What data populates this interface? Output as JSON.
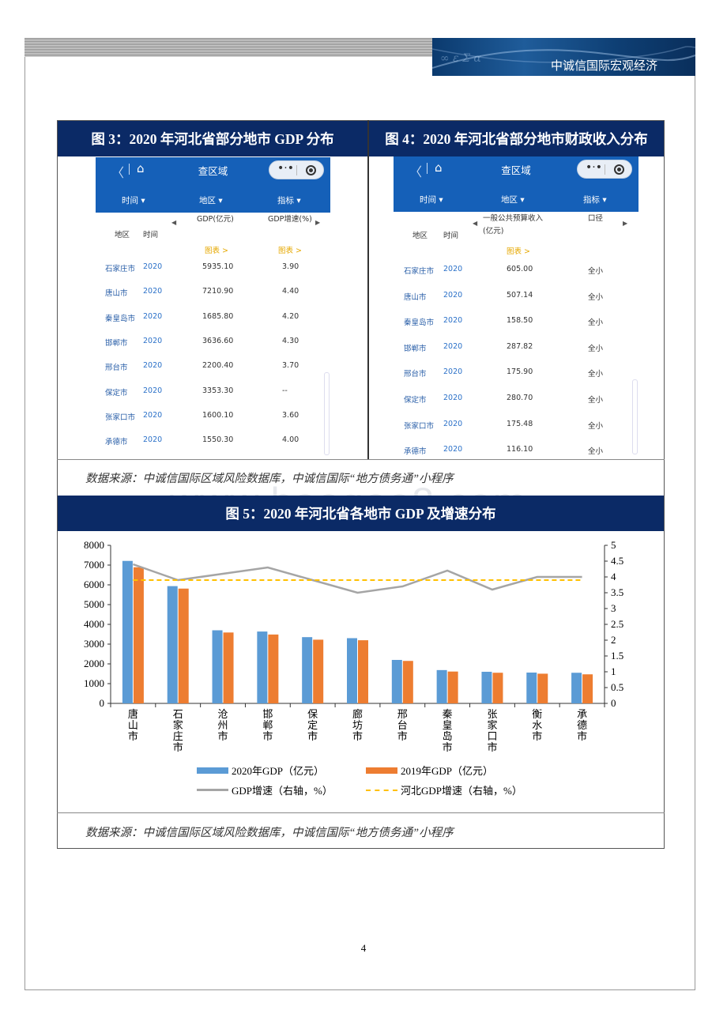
{
  "header": {
    "brand": "中诚信国际宏观经济"
  },
  "fig3": {
    "title": "图 3：2020 年河北省部分地市 GDP 分布",
    "nav_back": "〈",
    "nav_home": "⌂",
    "nav_title": "查区域",
    "capsule_dots": "•·•",
    "filters": [
      "时间 ▾",
      "地区 ▾",
      "指标 ▾"
    ],
    "col_region": "地区",
    "col_time": "时间",
    "col_gdp": "GDP(亿元)",
    "col_growth": "GDP增速(%)",
    "chart_link_1": "图表 >",
    "chart_link_2": "图表 >",
    "arrow_left": "◀",
    "arrow_right": "▶",
    "rows": [
      {
        "city": "石家庄市",
        "year": "2020",
        "gdp": "5935.10",
        "growth": "3.90"
      },
      {
        "city": "唐山市",
        "year": "2020",
        "gdp": "7210.90",
        "growth": "4.40"
      },
      {
        "city": "秦皇岛市",
        "year": "2020",
        "gdp": "1685.80",
        "growth": "4.20"
      },
      {
        "city": "邯郸市",
        "year": "2020",
        "gdp": "3636.60",
        "growth": "4.30"
      },
      {
        "city": "邢台市",
        "year": "2020",
        "gdp": "2200.40",
        "growth": "3.70"
      },
      {
        "city": "保定市",
        "year": "2020",
        "gdp": "3353.30",
        "growth": "--"
      },
      {
        "city": "张家口市",
        "year": "2020",
        "gdp": "1600.10",
        "growth": "3.60"
      },
      {
        "city": "承德市",
        "year": "2020",
        "gdp": "1550.30",
        "growth": "4.00"
      }
    ]
  },
  "fig4": {
    "title": "图 4：2020 年河北省部分地市财政收入分布",
    "nav_back": "〈",
    "nav_home": "⌂",
    "nav_title": "查区域",
    "capsule_dots": "•·•",
    "filters": [
      "时间 ▾",
      "地区 ▾",
      "指标 ▾"
    ],
    "col_region": "地区",
    "col_time": "时间",
    "col_revenue_1": "一般公共预算收入",
    "col_revenue_2": "(亿元)",
    "col_scope": "口径",
    "chart_link": "图表 >",
    "arrow_left": "◀",
    "arrow_right": "▶",
    "rows": [
      {
        "city": "石家庄市",
        "year": "2020",
        "revenue": "605.00",
        "scope": "全小"
      },
      {
        "city": "唐山市",
        "year": "2020",
        "revenue": "507.14",
        "scope": "全小"
      },
      {
        "city": "秦皇岛市",
        "year": "2020",
        "revenue": "158.50",
        "scope": "全小"
      },
      {
        "city": "邯郸市",
        "year": "2020",
        "revenue": "287.82",
        "scope": "全小"
      },
      {
        "city": "邢台市",
        "year": "2020",
        "revenue": "175.90",
        "scope": "全小"
      },
      {
        "city": "保定市",
        "year": "2020",
        "revenue": "280.70",
        "scope": "全小"
      },
      {
        "city": "张家口市",
        "year": "2020",
        "revenue": "175.48",
        "scope": "全小"
      },
      {
        "city": "承德市",
        "year": "2020",
        "revenue": "116.10",
        "scope": "全小"
      }
    ]
  },
  "source_1": "数据来源：中诚信国际区域风险数据库，中诚信国际“地方债务通”小程序",
  "watermark": "www.baogao8.com",
  "fig5": {
    "title": "图 5：2020 年河北省各地市 GDP 及增速分布"
  },
  "chart_data": {
    "type": "bar",
    "categories": [
      "唐山市",
      "石家庄市",
      "沧州市",
      "邯郸市",
      "保定市",
      "廊坊市",
      "邢台市",
      "秦皇岛市",
      "张家口市",
      "衡水市",
      "承德市"
    ],
    "series": [
      {
        "name": "2020年GDP（亿元）",
        "type": "bar",
        "axis": "left",
        "color": "#5b9bd5",
        "values": [
          7210.9,
          5935.1,
          3699.9,
          3636.6,
          3353.3,
          3301.1,
          2200.4,
          1685.8,
          1600.1,
          1560.2,
          1550.3
        ]
      },
      {
        "name": "2019年GDP（亿元）",
        "type": "bar",
        "axis": "left",
        "color": "#ed7d31",
        "values": [
          6890.0,
          5810.0,
          3588.0,
          3486.0,
          3224.0,
          3196.0,
          2150.0,
          1612.0,
          1551.0,
          1503.0,
          1471.0
        ]
      },
      {
        "name": "GDP增速（右轴，%）",
        "type": "line",
        "axis": "right",
        "color": "#a5a5a5",
        "values": [
          4.4,
          3.9,
          4.1,
          4.3,
          3.9,
          3.5,
          3.7,
          4.2,
          3.6,
          4.0,
          4.0
        ]
      },
      {
        "name": "河北GDP增速（右轴，%）",
        "type": "line-dashed",
        "axis": "right",
        "color": "#ffc000",
        "values": [
          3.9,
          3.9,
          3.9,
          3.9,
          3.9,
          3.9,
          3.9,
          3.9,
          3.9,
          3.9,
          3.9
        ]
      }
    ],
    "ylim": [
      0,
      8000
    ],
    "y_ticks": [
      "0",
      "1000",
      "2000",
      "3000",
      "4000",
      "5000",
      "6000",
      "7000",
      "8000"
    ],
    "y2lim": [
      0,
      5
    ],
    "y2_ticks": [
      "0",
      "0.5",
      "1",
      "1.5",
      "2",
      "2.5",
      "3",
      "3.5",
      "4",
      "4.5",
      "5"
    ],
    "legend_position": "bottom",
    "grid": false
  },
  "source_2": "数据来源：中诚信国际区域风险数据库，中诚信国际“地方债务通”小程序",
  "page_number": "4"
}
